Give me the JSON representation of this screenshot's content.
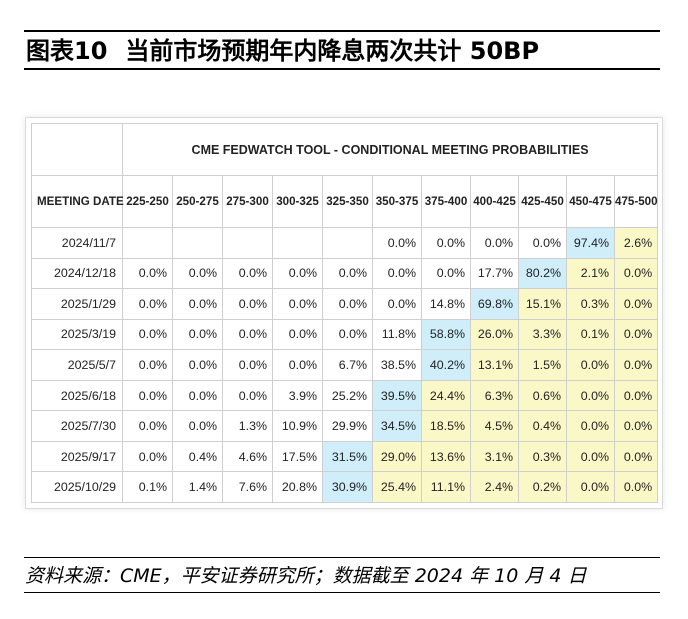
{
  "figure": {
    "label": "图表10",
    "title": "当前市场预期年内降息两次共计 50BP"
  },
  "table": {
    "tool_title": "CME FEDWATCH TOOL - CONDITIONAL MEETING PROBABILITIES",
    "meeting_date_header": "MEETING DATE",
    "rate_ranges": [
      "225-250",
      "250-275",
      "275-300",
      "300-325",
      "325-350",
      "350-375",
      "375-400",
      "400-425",
      "425-450",
      "450-475",
      "475-500"
    ],
    "rows": [
      {
        "date": "2024/11/7",
        "values": [
          "",
          "",
          "",
          "",
          "",
          "0.0%",
          "0.0%",
          "0.0%",
          "0.0%",
          "97.4%",
          "2.6%"
        ],
        "highlight_index": 9,
        "yellow_indexes": [
          10
        ]
      },
      {
        "date": "2024/12/18",
        "values": [
          "0.0%",
          "0.0%",
          "0.0%",
          "0.0%",
          "0.0%",
          "0.0%",
          "0.0%",
          "17.7%",
          "80.2%",
          "2.1%",
          "0.0%"
        ],
        "highlight_index": 8,
        "yellow_indexes": [
          9,
          10
        ]
      },
      {
        "date": "2025/1/29",
        "values": [
          "0.0%",
          "0.0%",
          "0.0%",
          "0.0%",
          "0.0%",
          "0.0%",
          "14.8%",
          "69.8%",
          "15.1%",
          "0.3%",
          "0.0%"
        ],
        "highlight_index": 7,
        "yellow_indexes": [
          8,
          9,
          10
        ]
      },
      {
        "date": "2025/3/19",
        "values": [
          "0.0%",
          "0.0%",
          "0.0%",
          "0.0%",
          "0.0%",
          "11.8%",
          "58.8%",
          "26.0%",
          "3.3%",
          "0.1%",
          "0.0%"
        ],
        "highlight_index": 6,
        "yellow_indexes": [
          7,
          8,
          9,
          10
        ]
      },
      {
        "date": "2025/5/7",
        "values": [
          "0.0%",
          "0.0%",
          "0.0%",
          "0.0%",
          "6.7%",
          "38.5%",
          "40.2%",
          "13.1%",
          "1.5%",
          "0.0%",
          "0.0%"
        ],
        "highlight_index": 6,
        "yellow_indexes": [
          7,
          8,
          9,
          10
        ]
      },
      {
        "date": "2025/6/18",
        "values": [
          "0.0%",
          "0.0%",
          "0.0%",
          "3.9%",
          "25.2%",
          "39.5%",
          "24.4%",
          "6.3%",
          "0.6%",
          "0.0%",
          "0.0%"
        ],
        "highlight_index": 5,
        "yellow_indexes": [
          6,
          7,
          8,
          9,
          10
        ]
      },
      {
        "date": "2025/7/30",
        "values": [
          "0.0%",
          "0.0%",
          "1.3%",
          "10.9%",
          "29.9%",
          "34.5%",
          "18.5%",
          "4.5%",
          "0.4%",
          "0.0%",
          "0.0%"
        ],
        "highlight_index": 5,
        "yellow_indexes": [
          6,
          7,
          8,
          9,
          10
        ]
      },
      {
        "date": "2025/9/17",
        "values": [
          "0.0%",
          "0.4%",
          "4.6%",
          "17.5%",
          "31.5%",
          "29.0%",
          "13.6%",
          "3.1%",
          "0.3%",
          "0.0%",
          "0.0%"
        ],
        "highlight_index": 4,
        "yellow_indexes": [
          5,
          6,
          7,
          8,
          9,
          10
        ]
      },
      {
        "date": "2025/10/29",
        "values": [
          "0.1%",
          "1.4%",
          "7.6%",
          "20.8%",
          "30.9%",
          "25.4%",
          "11.1%",
          "2.4%",
          "0.2%",
          "0.0%",
          "0.0%"
        ],
        "highlight_index": 4,
        "yellow_indexes": [
          5,
          6,
          7,
          8,
          9,
          10
        ]
      }
    ]
  },
  "source": "资料来源：CME，平安证券研究所；数据截至 2024 年 10 月 4 日",
  "colors": {
    "highlight_blue": "#cfeefa",
    "highlight_yellow": "#fbf8c8",
    "grid": "#cfcfcf"
  }
}
